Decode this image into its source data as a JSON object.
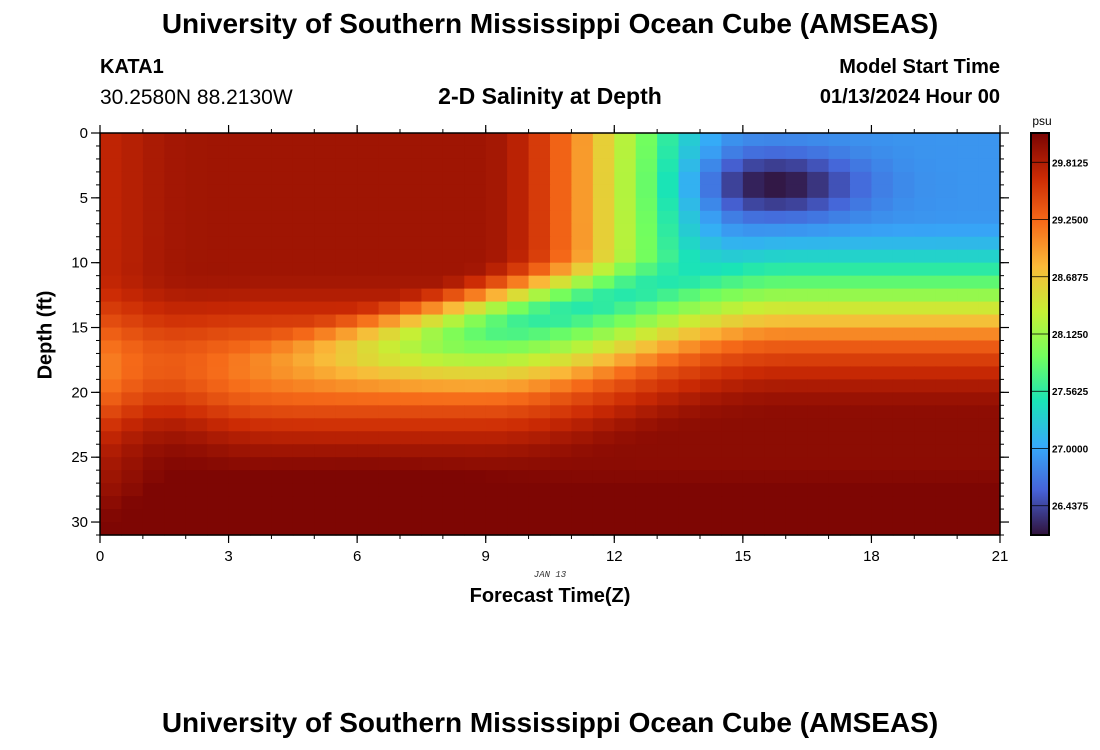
{
  "header": {
    "title": "University of Southern Mississippi Ocean Cube (AMSEAS)",
    "station": "KATA1",
    "coordinates": "30.2580N  88.2130W",
    "subtitle": "2-D Salinity at Depth",
    "model_start_label": "Model Start Time",
    "model_start_value": "01/13/2024 Hour 00"
  },
  "footer": {
    "title": "University of Southern Mississippi Ocean Cube (AMSEAS)"
  },
  "chart_data": {
    "type": "heatmap",
    "title": "2-D Salinity at Depth",
    "xlabel": "Forecast Time(Z)",
    "ylabel": "Depth (ft)",
    "x_tick_labels": [
      "0",
      "3",
      "6",
      "9",
      "12",
      "15",
      "18",
      "21"
    ],
    "x_range": [
      0,
      21
    ],
    "y_tick_labels": [
      "0",
      "5",
      "10",
      "15",
      "20",
      "25",
      "30"
    ],
    "y_range": [
      0,
      31
    ],
    "date_annotation": "JAN 13",
    "colorbar": {
      "unit": "psu",
      "min": 26.15,
      "max": 30.1,
      "tick_labels": [
        "29.8125",
        "29.2500",
        "28.6875",
        "28.1250",
        "27.5625",
        "27.0000",
        "26.4375"
      ],
      "tick_values": [
        29.8125,
        29.25,
        28.6875,
        28.125,
        27.5625,
        27.0,
        26.4375
      ],
      "colors": [
        "#30123b",
        "#4662d7",
        "#36aaf9",
        "#1ae4b6",
        "#72fe5e",
        "#c7ef34",
        "#faba39",
        "#f66b19",
        "#cb2a04",
        "#7a0403"
      ]
    },
    "grid_resolution": {
      "columns": 42,
      "rows": 31
    },
    "description_values": {
      "surface_fresh_core_min_psu": 26.2,
      "deep_max_psu": 30.05
    }
  }
}
